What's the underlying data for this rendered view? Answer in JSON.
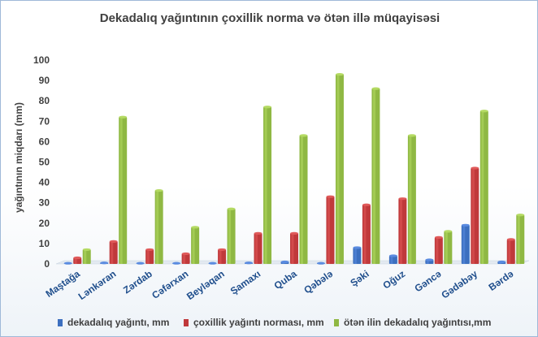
{
  "chart_data": {
    "type": "bar",
    "title": "Dekadalıq yağıntının çoxillik norma  və ötən illə müqayisəsi",
    "ylabel": "yağıntının miqdarı (mm)",
    "xlabel": "",
    "ylim": [
      0,
      100
    ],
    "yticks": [
      "0",
      "10",
      "20",
      "30",
      "40",
      "50",
      "60",
      "70",
      "80",
      "90",
      "100"
    ],
    "grid": false,
    "legend_position": "bottom",
    "categories": [
      "Maştağa",
      "Lənkəran",
      "Zərdab",
      "Cəfərxan",
      "Beyləqan",
      "Şamaxı",
      "Quba",
      "Qəbələ",
      "Şəki",
      "Oğuz",
      "Gəncə",
      "Gədəbəy",
      "Bərdə"
    ],
    "series": [
      {
        "name": "dekadalıq yağıntı, mm",
        "color": "#3c6fbf",
        "values": [
          0,
          0.5,
          0,
          0,
          0,
          0.5,
          1,
          0,
          8,
          4,
          2,
          19,
          1
        ]
      },
      {
        "name": "çoxillik yağıntı norması, mm",
        "color": "#c0393b",
        "values": [
          3,
          11,
          7,
          5,
          7,
          15,
          15,
          33,
          29,
          32,
          13,
          47,
          12
        ]
      },
      {
        "name": "ötən ilin dekadalıq yağıntısı,mm",
        "color": "#8fb843",
        "values": [
          7,
          72,
          36,
          18,
          27,
          77,
          63,
          93,
          86,
          63,
          16,
          75,
          24
        ]
      }
    ]
  }
}
